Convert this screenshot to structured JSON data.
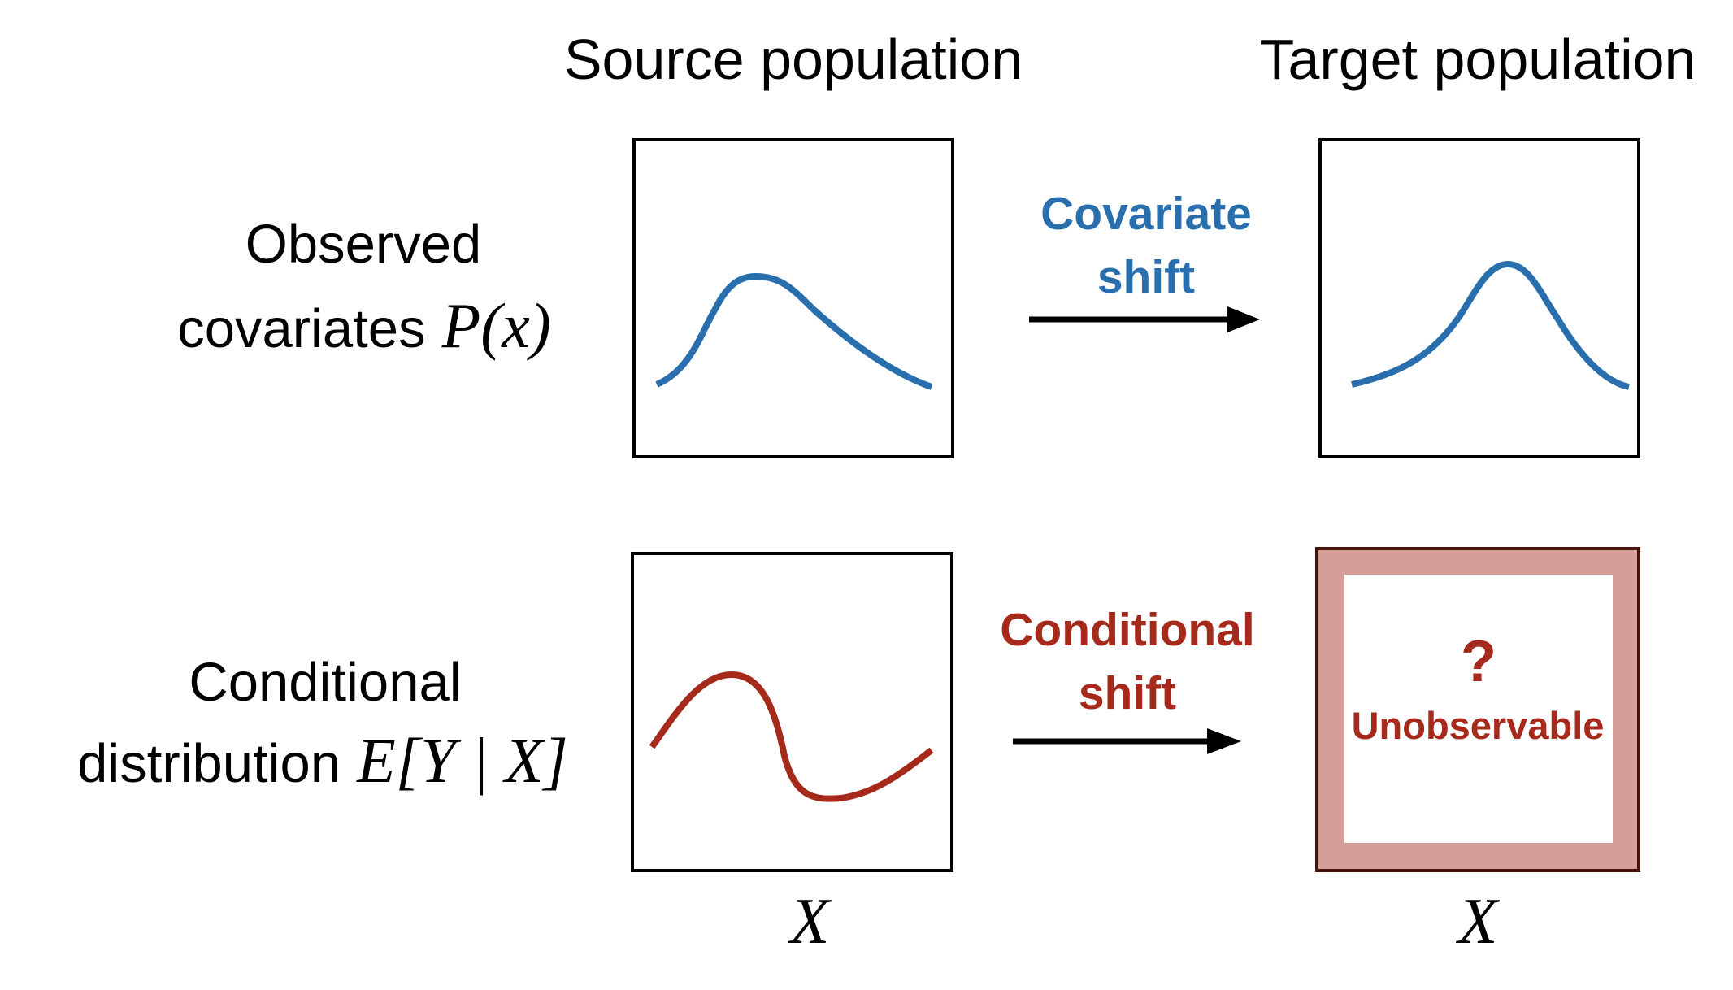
{
  "columns": {
    "source_title": "Source population",
    "target_title": "Target population"
  },
  "rows": {
    "observed": {
      "line1": "Observed",
      "line2": "covariates",
      "math": "P(x)"
    },
    "conditional": {
      "line1": "Conditional",
      "line2": "distribution",
      "math": "E[Y | X]"
    }
  },
  "arrows": {
    "covariate": {
      "line1": "Covariate",
      "line2": "shift"
    },
    "conditional": {
      "line1": "Conditional",
      "line2": "shift"
    }
  },
  "unknown_panel": {
    "mark": "?",
    "label": "Unobservable"
  },
  "axis_labels": {
    "source": "X",
    "target": "X"
  },
  "colors": {
    "blue": "#2a6fad",
    "red": "#a52a1c",
    "panel_fill": "#d59e97",
    "panel_border": "#4a120c",
    "black": "#000000"
  }
}
